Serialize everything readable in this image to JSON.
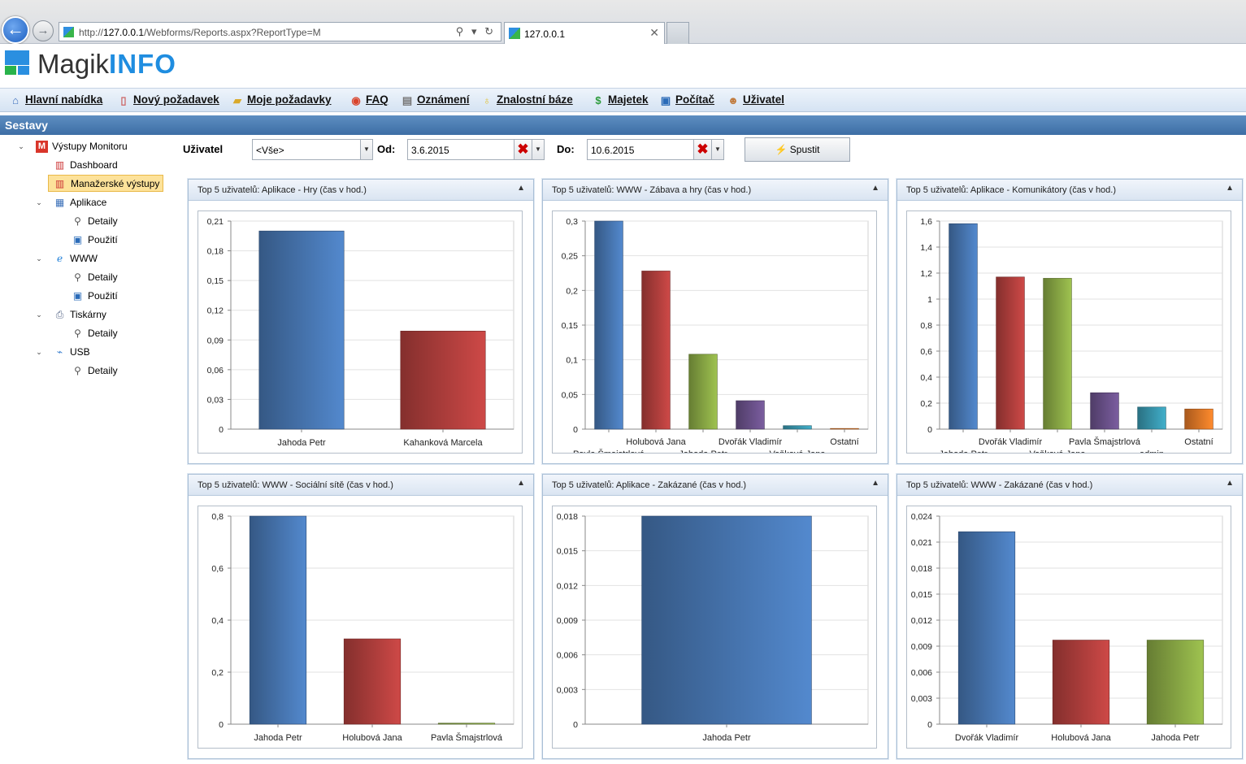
{
  "browser": {
    "url_prefix": "http://",
    "url_host": "127.0.0.1",
    "url_path": "/Webforms/Reports.aspx?ReportType=M",
    "tab_title": "127.0.0.1",
    "back_icon": "arrow-left-icon",
    "forward_icon": "arrow-right-icon"
  },
  "app": {
    "title_plain": "Magik",
    "title_bold": "INFO"
  },
  "menu": [
    {
      "label": "Hlavní nabídka",
      "icon": "home-icon"
    },
    {
      "label": "Nový požadavek",
      "icon": "new-document-icon"
    },
    {
      "label": "Moje požadavky",
      "icon": "folder-icon"
    },
    {
      "label": "FAQ",
      "icon": "lifebuoy-icon"
    },
    {
      "label": "Oznámení",
      "icon": "announcement-icon"
    },
    {
      "label": "Znalostní báze",
      "icon": "lightbulb-icon"
    },
    {
      "label": "Majetek",
      "icon": "money-icon"
    },
    {
      "label": "Počítač",
      "icon": "computer-icon"
    },
    {
      "label": "Uživatel",
      "icon": "user-icon"
    }
  ],
  "section_title": "Sestavy",
  "tree": {
    "root": "Výstupy Monitoru",
    "dashboard": "Dashboard",
    "manager": "Manažerské výstupy",
    "apps": "Aplikace",
    "www": "WWW",
    "printers": "Tiskárny",
    "usb": "USB",
    "details": "Detaily",
    "usage": "Použití"
  },
  "filter": {
    "user_label": "Uživatel",
    "user_value": "<Vše>",
    "from_label": "Od:",
    "from_value": "3.6.2015",
    "to_label": "Do:",
    "to_value": "10.6.2015",
    "run_label": "Spustit"
  },
  "colors": {
    "blue": "#4a7ab8",
    "red": "#b8413f",
    "green": "#8eae47",
    "purple": "#6e548f",
    "teal": "#3a9cb4",
    "orange": "#e97c28",
    "header_blue": "#4a7db4"
  },
  "chart_data": [
    {
      "type": "bar",
      "title": "Top 5 uživatelů: Aplikace - Hry (čas v hod.)",
      "categories": [
        "Jahoda Petr",
        "Kahanková Marcela"
      ],
      "values": [
        0.2,
        0.099
      ],
      "ylim": [
        0,
        0.21
      ],
      "yticks": [
        "0",
        "0,03",
        "0,06",
        "0,09",
        "0,12",
        "0,15",
        "0,18",
        "0,21"
      ],
      "legend": "none",
      "grid": true
    },
    {
      "type": "bar",
      "title": "Top 5 uživatelů: WWW - Zábava a hry (čas v hod.)",
      "categories": [
        "Pavla Šmajstrlová",
        "Holubová Jana",
        "Jahoda Petr",
        "Dvořák Vladimír",
        "Vaňková Jana",
        "Ostatní"
      ],
      "values": [
        0.3,
        0.228,
        0.108,
        0.041,
        0.005,
        0.001
      ],
      "ylim": [
        0,
        0.3
      ],
      "yticks": [
        "0",
        "0,05",
        "0,1",
        "0,15",
        "0,2",
        "0,25",
        "0,3"
      ],
      "legend": "none",
      "grid": true
    },
    {
      "type": "bar",
      "title": "Top 5 uživatelů: Aplikace - Komunikátory (čas v hod.)",
      "categories": [
        "Jahoda Petr",
        "Dvořák Vladimír",
        "Vaňková Jana",
        "Pavla Šmajstrlová",
        "admin",
        "Ostatní"
      ],
      "values": [
        1.58,
        1.17,
        1.16,
        0.28,
        0.17,
        0.155
      ],
      "ylim": [
        0,
        1.6
      ],
      "yticks": [
        "0",
        "0,2",
        "0,4",
        "0,6",
        "0,8",
        "1",
        "1,2",
        "1,4",
        "1,6"
      ],
      "legend": "none",
      "grid": true
    },
    {
      "type": "bar",
      "title": "Top 5 uživatelů: WWW - Sociální sítě (čas v hod.)",
      "categories": [
        "Jahoda Petr",
        "Holubová Jana",
        "Pavla Šmajstrlová"
      ],
      "values": [
        0.878,
        0.328,
        0.004
      ],
      "ylim": [
        0,
        0.8
      ],
      "yticks": [
        "0",
        "0,2",
        "0,4",
        "0,6",
        "0,8"
      ],
      "legend": "none",
      "grid": true
    },
    {
      "type": "bar",
      "title": "Top 5 uživatelů: Aplikace - Zakázané (čas v hod.)",
      "categories": [
        "Jahoda Petr"
      ],
      "values": [
        0.018
      ],
      "ylim": [
        0,
        0.018
      ],
      "yticks": [
        "0",
        "0,003",
        "0,006",
        "0,009",
        "0,012",
        "0,015",
        "0,018"
      ],
      "legend": "none",
      "grid": true
    },
    {
      "type": "bar",
      "title": "Top 5 uživatelů: WWW - Zakázané (čas v hod.)",
      "categories": [
        "Dvořák Vladimír",
        "Holubová Jana",
        "Jahoda Petr"
      ],
      "values": [
        0.0222,
        0.0097,
        0.0097
      ],
      "ylim": [
        0,
        0.024
      ],
      "yticks": [
        "0",
        "0,003",
        "0,006",
        "0,009",
        "0,012",
        "0,015",
        "0,018",
        "0,021",
        "0,024"
      ],
      "legend": "none",
      "grid": true
    }
  ]
}
